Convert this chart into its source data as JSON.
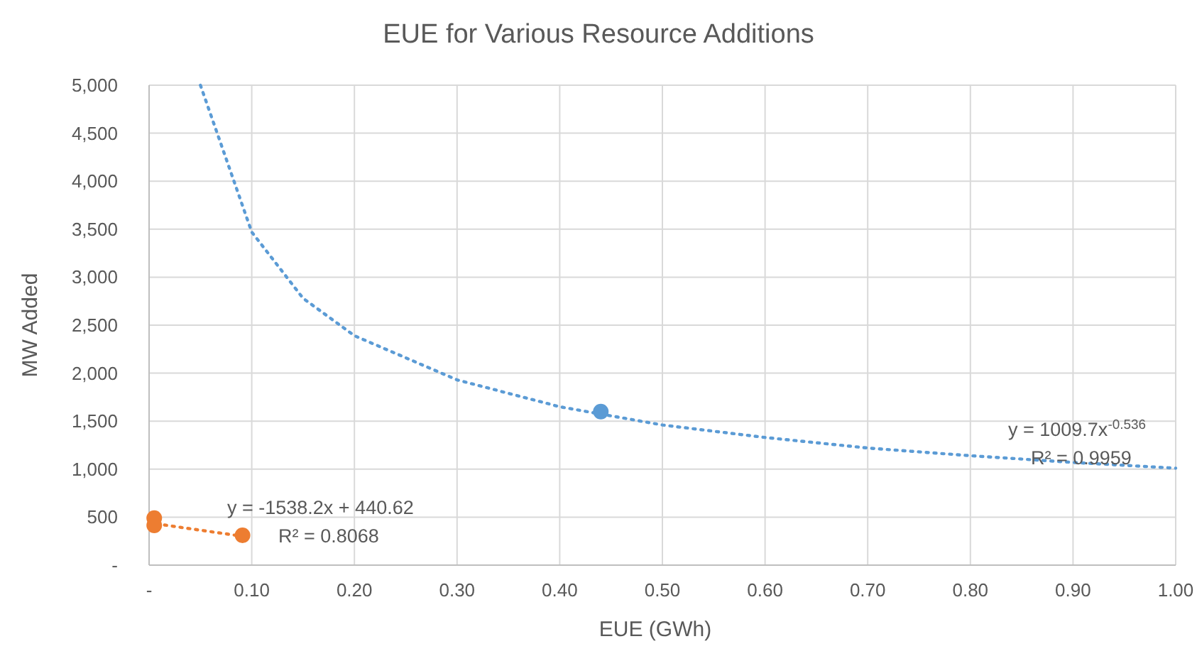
{
  "chart_data": {
    "type": "scatter",
    "title": "EUE for Various Resource Additions",
    "xlabel": "EUE (GWh)",
    "ylabel": "MW Added",
    "xlim": [
      0,
      1
    ],
    "xticks": [
      {
        "value": 0,
        "label": "-"
      },
      {
        "value": 0.1,
        "label": "0.10"
      },
      {
        "value": 0.2,
        "label": "0.20"
      },
      {
        "value": 0.3,
        "label": "0.30"
      },
      {
        "value": 0.4,
        "label": "0.40"
      },
      {
        "value": 0.5,
        "label": "0.50"
      },
      {
        "value": 0.6,
        "label": "0.60"
      },
      {
        "value": 0.7,
        "label": "0.70"
      },
      {
        "value": 0.8,
        "label": "0.80"
      },
      {
        "value": 0.9,
        "label": "0.90"
      },
      {
        "value": 1,
        "label": "1.00"
      }
    ],
    "ylim": [
      0,
      5000
    ],
    "yticks": [
      {
        "value": 0,
        "label": "-"
      },
      {
        "value": 500,
        "label": "500"
      },
      {
        "value": 1000,
        "label": "1,000"
      },
      {
        "value": 1500,
        "label": "1,500"
      },
      {
        "value": 2000,
        "label": "2,000"
      },
      {
        "value": 2500,
        "label": "2,500"
      },
      {
        "value": 3000,
        "label": "3,000"
      },
      {
        "value": 3500,
        "label": "3,500"
      },
      {
        "value": 4000,
        "label": "4,000"
      },
      {
        "value": 4500,
        "label": "4,500"
      },
      {
        "value": 5000,
        "label": "5,000"
      }
    ],
    "grid": true,
    "series": [
      {
        "type": "line",
        "color": "#5b9bd5",
        "line_style": "dotted",
        "x": [
          0.05,
          0.1,
          0.15,
          0.2,
          0.3,
          0.4,
          0.5,
          0.6,
          0.7,
          0.8,
          0.9,
          1.0
        ],
        "values": [
          5000,
          3470,
          2780,
          2390,
          1930,
          1650,
          1460,
          1330,
          1220,
          1140,
          1070,
          1010
        ]
      },
      {
        "type": "line",
        "color": "#ed7d31",
        "line_style": "dotted",
        "x": [
          0,
          0.091
        ],
        "values": [
          441,
          301
        ]
      },
      {
        "color": "#5b9bd5",
        "marker": "circle",
        "x": [
          0.44
        ],
        "values": [
          1600
        ]
      },
      {
        "color": "#ed7d31",
        "marker": "circle",
        "x": [
          0.005,
          0.005,
          0.091
        ],
        "values": [
          490,
          414,
          310
        ]
      }
    ],
    "annotations": [
      "y = 1009.7x$^{-0.536}$",
      "R² = 0.9959",
      "y = -1538.2x + 440.62",
      "R² = 0.8068"
    ]
  }
}
